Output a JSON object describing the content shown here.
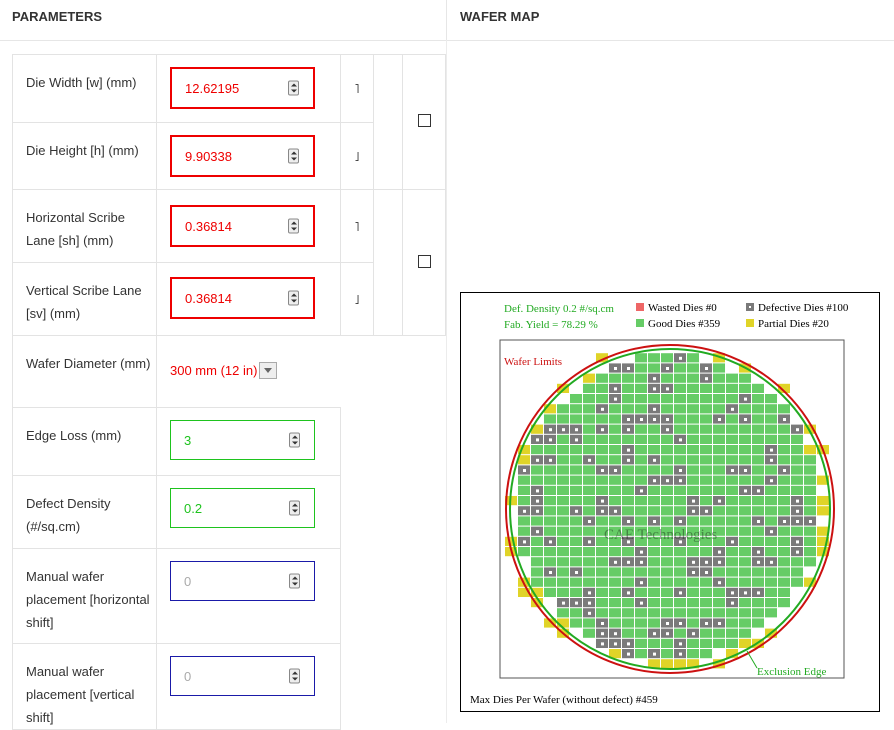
{
  "headers": {
    "parameters": "PARAMETERS",
    "wafer_map": "WAFER MAP"
  },
  "params": {
    "die_width": {
      "label": "Die Width [w] (mm)",
      "value": "12.62195"
    },
    "die_height": {
      "label": "Die Height [h] (mm)",
      "value": "9.90338"
    },
    "h_scribe": {
      "label": "Horizontal Scribe Lane [sh] (mm)",
      "value": "0.36814"
    },
    "v_scribe": {
      "label": "Vertical Scribe Lane [sv] (mm)",
      "value": "0.36814"
    },
    "wafer_diameter": {
      "label": "Wafer Diameter (mm)",
      "selected": "300 mm (12 in)"
    },
    "edge_loss": {
      "label": "Edge Loss (mm)",
      "value": "3"
    },
    "defect_density": {
      "label": "Defect Density (#/sq.cm)",
      "value": "0.2"
    },
    "manual_h": {
      "label": "Manual wafer placement [horizontal shift]",
      "placeholder": "0"
    },
    "manual_v": {
      "label": "Manual wafer placement [vertical shift]",
      "placeholder": "0"
    },
    "bracket_top": "˥",
    "bracket_bottom": "˩"
  },
  "wafer_map": {
    "def_density": "Def. Density 0.2 #/sq.cm",
    "fab_yield": "Fab. Yield = 78.29 %",
    "legend_wasted": "Wasted Dies  #0",
    "legend_defective": "Defective Dies  #100",
    "legend_good": "Good Dies #359",
    "legend_partial": "Partial Dies #20",
    "wafer_limits": "Wafer Limits",
    "exclusion_edge": "Exclusion Edge",
    "watermark": "CAE Technologies",
    "footer": "Max Dies Per Wafer (without defect) #459",
    "colors": {
      "good": "#66cc66",
      "defective": "#7a7a7a",
      "partial": "#e0d428",
      "wasted": "#ee6666",
      "wafer_limit": "#cc1111",
      "exclusion": "#22aa22"
    }
  }
}
